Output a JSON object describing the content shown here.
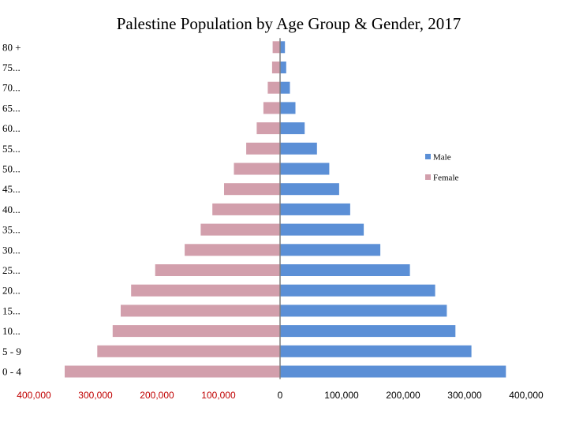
{
  "chart_data": {
    "type": "bar",
    "orientation": "horizontal",
    "title": "Palestine Population by Age Group & Gender, 2017",
    "categories": [
      "0 - 4",
      "5 - 9",
      "10...",
      "15...",
      "20...",
      "25...",
      "30...",
      "35...",
      "40...",
      "45...",
      "50...",
      "55...",
      "60...",
      "65...",
      "70...",
      "75...",
      "80 +"
    ],
    "series": [
      {
        "name": "Male",
        "color": "#5b8fd6",
        "values": [
          367000,
          311000,
          285000,
          271000,
          252000,
          211000,
          163000,
          136000,
          114000,
          96000,
          80000,
          60000,
          40000,
          25000,
          16000,
          10000,
          8000
        ]
      },
      {
        "name": "Female",
        "color": "#d29fac",
        "values": [
          -350000,
          -297000,
          -272000,
          -259000,
          -242000,
          -203000,
          -155000,
          -129000,
          -110000,
          -91000,
          -75000,
          -55000,
          -38000,
          -27000,
          -20000,
          -13000,
          -12000
        ]
      }
    ],
    "xlim": [
      -400000,
      400000
    ],
    "x_ticks": [
      {
        "value": -400000,
        "label": "400,000"
      },
      {
        "value": -300000,
        "label": "300,000"
      },
      {
        "value": -200000,
        "label": "200,000"
      },
      {
        "value": -100000,
        "label": "100,000"
      },
      {
        "value": 0,
        "label": "0"
      },
      {
        "value": 100000,
        "label": "100,000"
      },
      {
        "value": 200000,
        "label": "200,000"
      },
      {
        "value": 300000,
        "label": "300,000"
      },
      {
        "value": 400000,
        "label": "400,000"
      }
    ],
    "negative_tick_color": "#c00000",
    "positive_tick_color": "#000000",
    "legend": {
      "placement": "right",
      "entries": [
        "Male",
        "Female"
      ]
    },
    "xlabel": "",
    "ylabel": ""
  }
}
